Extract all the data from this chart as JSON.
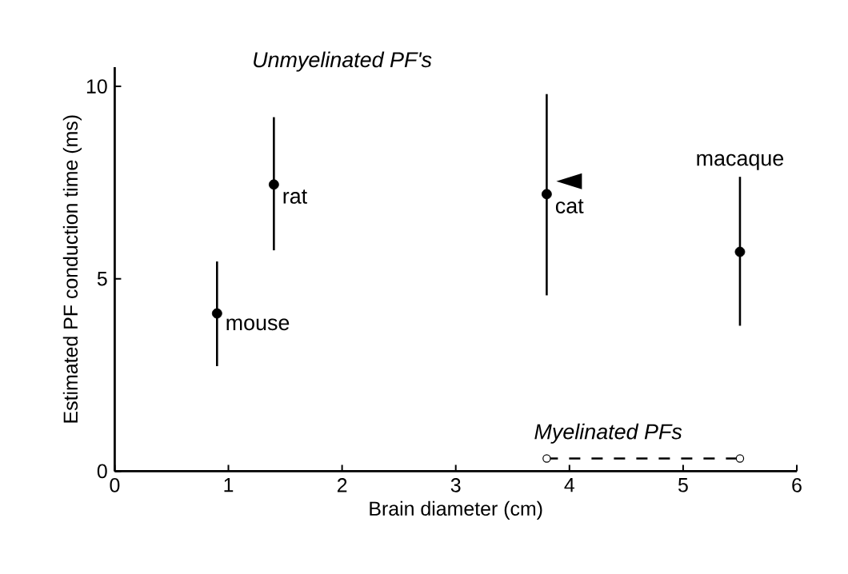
{
  "chart_data": {
    "type": "scatter",
    "xlabel": "Brain diameter (cm)",
    "ylabel": "Estimated PF conduction time (ms)",
    "xlim": [
      0,
      6
    ],
    "ylim": [
      0,
      10.5
    ],
    "xticks": [
      0,
      1,
      2,
      3,
      4,
      5,
      6
    ],
    "yticks": [
      0,
      5,
      10
    ],
    "series": [
      {
        "marker": "circle",
        "color": "#000000",
        "x": [
          0.9,
          1.4,
          3.8,
          5.5
        ],
        "values": [
          4.1,
          7.45,
          7.2,
          5.7
        ],
        "errors": [
          [
            2.73,
            5.45
          ],
          [
            5.74,
            9.2
          ],
          [
            4.57,
            9.8
          ],
          [
            3.78,
            7.65
          ]
        ]
      },
      {
        "name": "Myelinated PFs",
        "type": "line",
        "marker": "circle",
        "line_style": "dashed",
        "color": "#000000",
        "x": [
          3.8,
          5.5
        ],
        "values": [
          0.33,
          0.33
        ]
      }
    ],
    "annotations": [
      "Unmyelinated PF's",
      {
        "text": "mouse",
        "x": 0.9,
        "y": 4.1
      },
      {
        "text": "rat",
        "x": 1.4,
        "y": 7.45
      },
      {
        "text": "cat",
        "x": 3.8,
        "y": 7.2
      },
      {
        "text": "macaque",
        "x": 5.5,
        "y": 7.65
      }
    ]
  }
}
